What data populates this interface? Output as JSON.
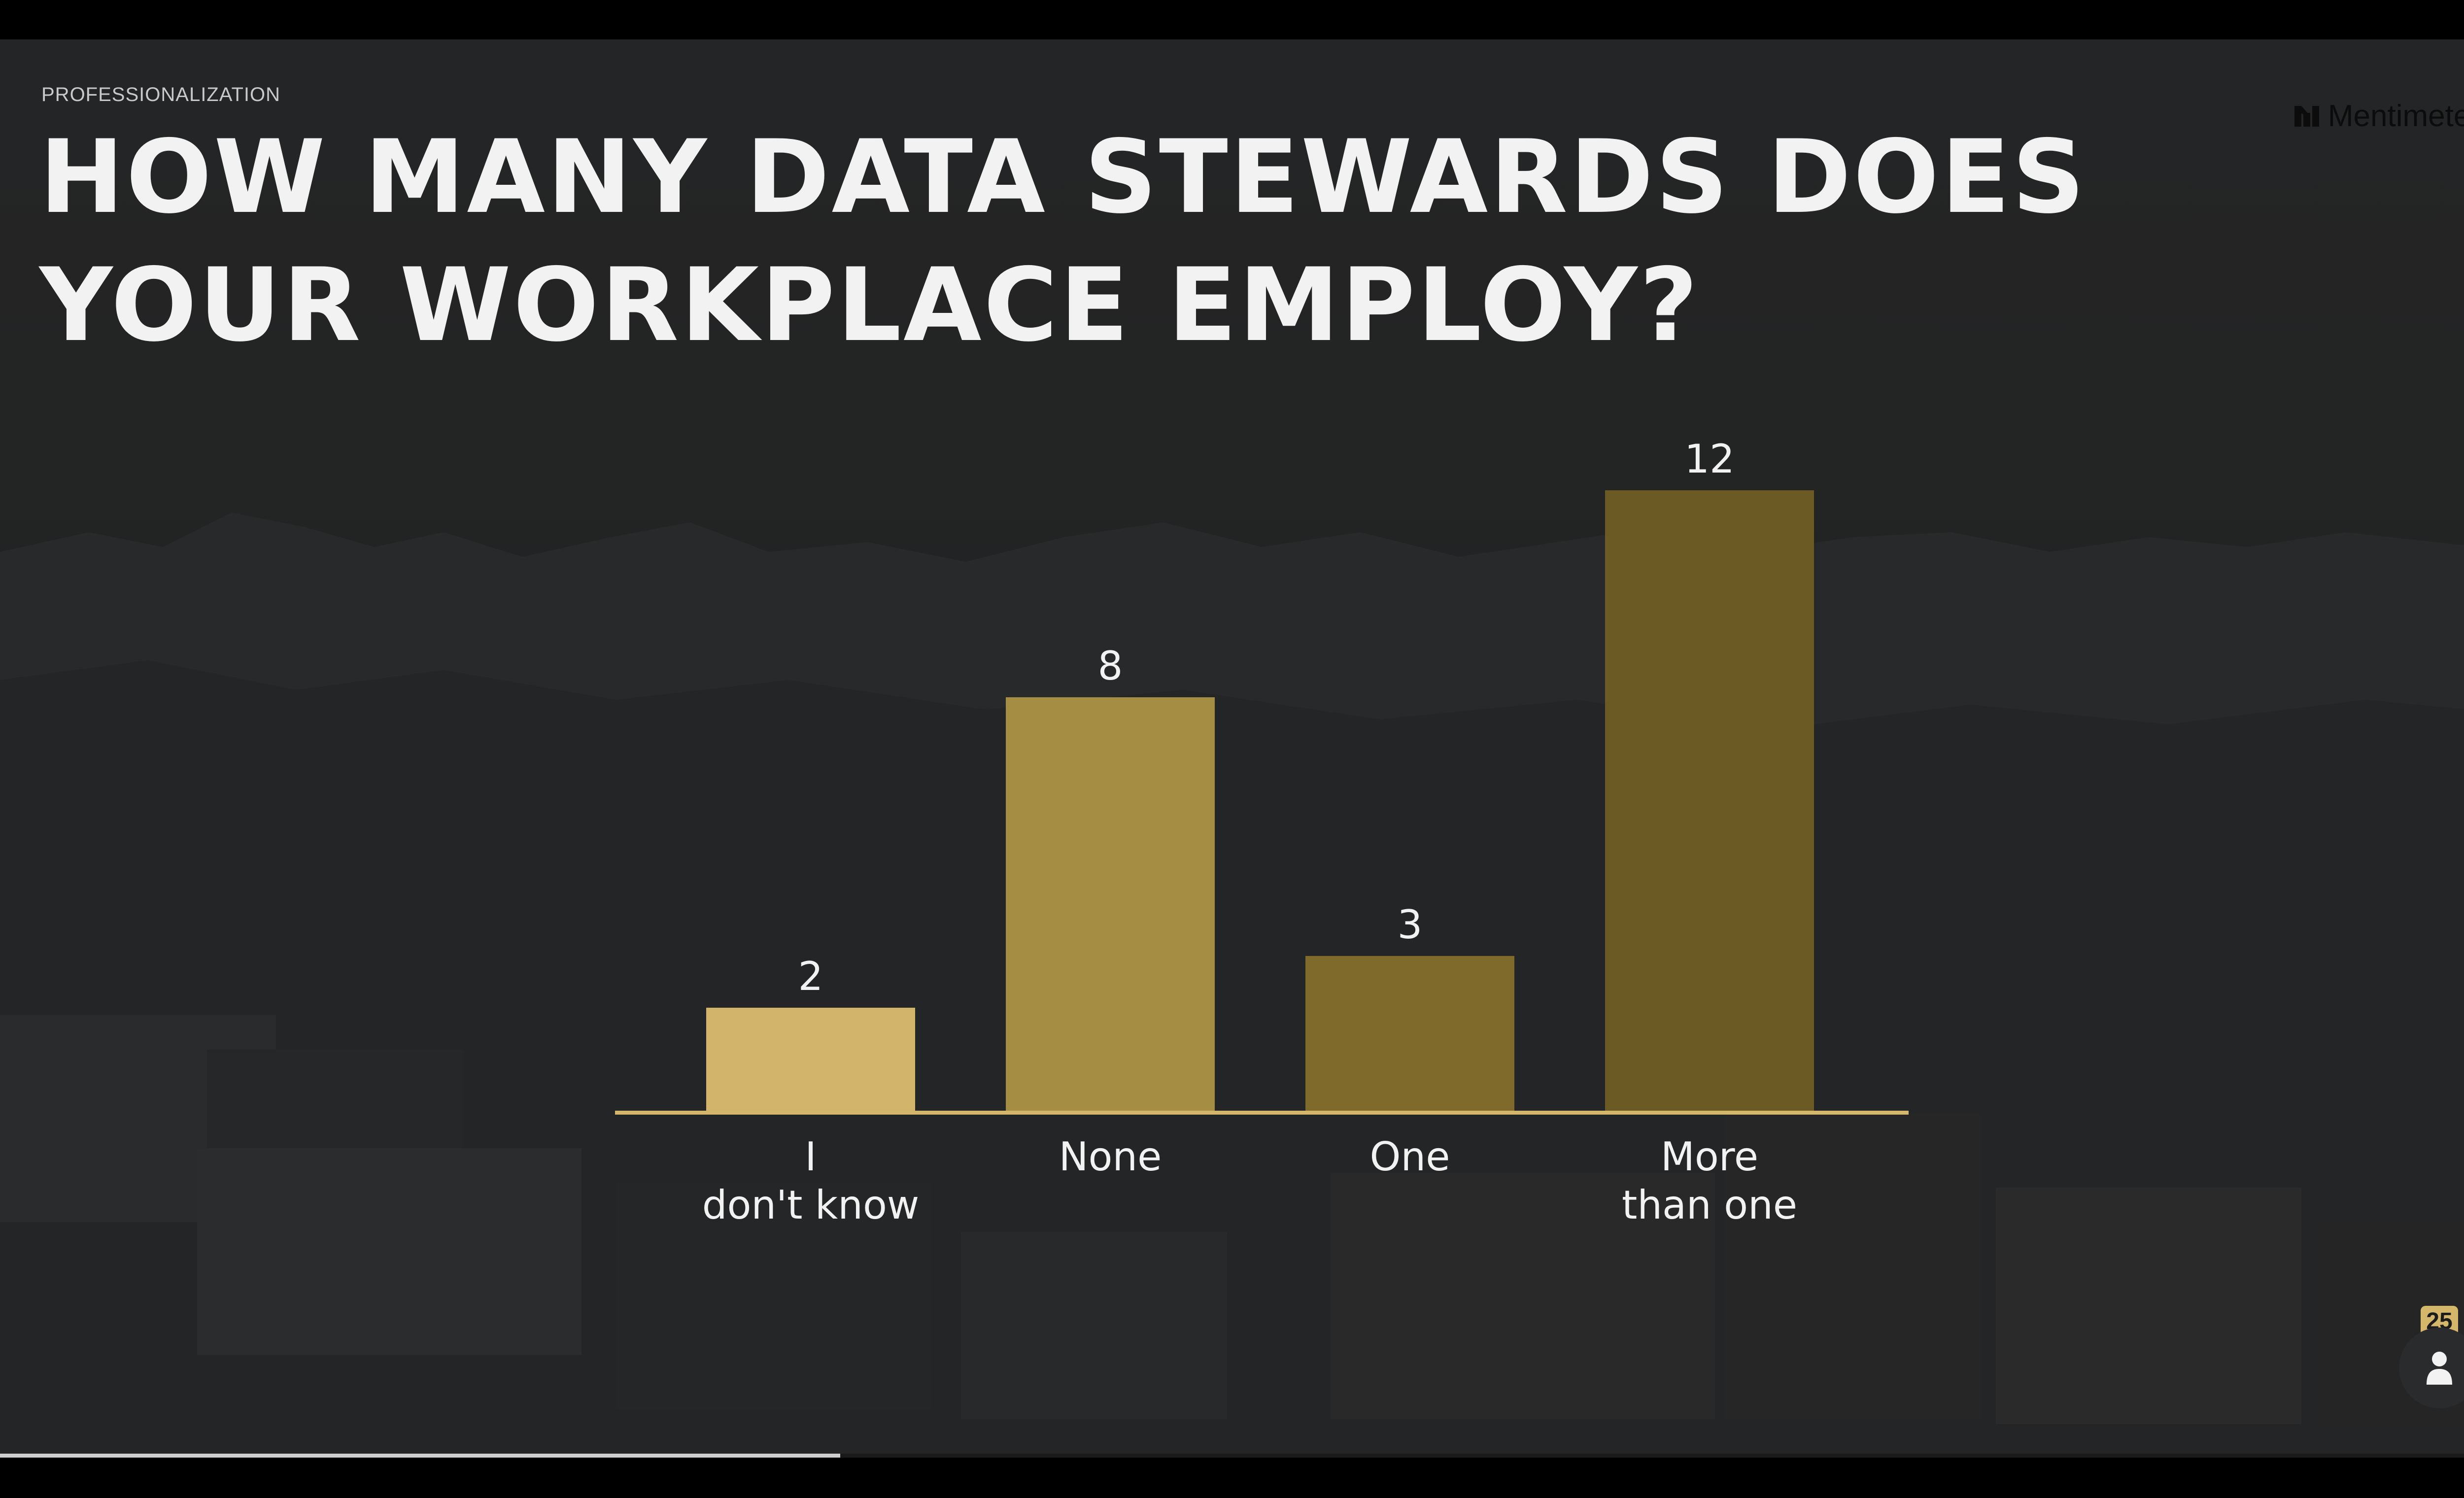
{
  "slide": {
    "eyebrow": "PROFESSIONALIZATION",
    "title": "HOW MANY DATA STEWARDS DOES YOUR WORKPLACE EMPLOY?",
    "brand": "Mentimeter"
  },
  "colors": {
    "background": "#232425",
    "text": "#f2f2f2",
    "baseline": "#d4b76a",
    "bars": [
      "#d3b46b",
      "#a68d44",
      "#7f6a2b",
      "#6c5a25"
    ]
  },
  "chart_data": {
    "type": "bar",
    "categories": [
      "I don't know",
      "None",
      "One",
      "More than one"
    ],
    "values": [
      2,
      8,
      3,
      12
    ],
    "title": "HOW MANY DATA STEWARDS DOES YOUR WORKPLACE EMPLOY?",
    "xlabel": "",
    "ylabel": "",
    "ylim": [
      0,
      12
    ],
    "grid": false,
    "legend": "none",
    "value_labels": true
  },
  "audience": {
    "count": "25",
    "icon": "person-icon"
  },
  "progress": {
    "fraction": 0.333
  }
}
